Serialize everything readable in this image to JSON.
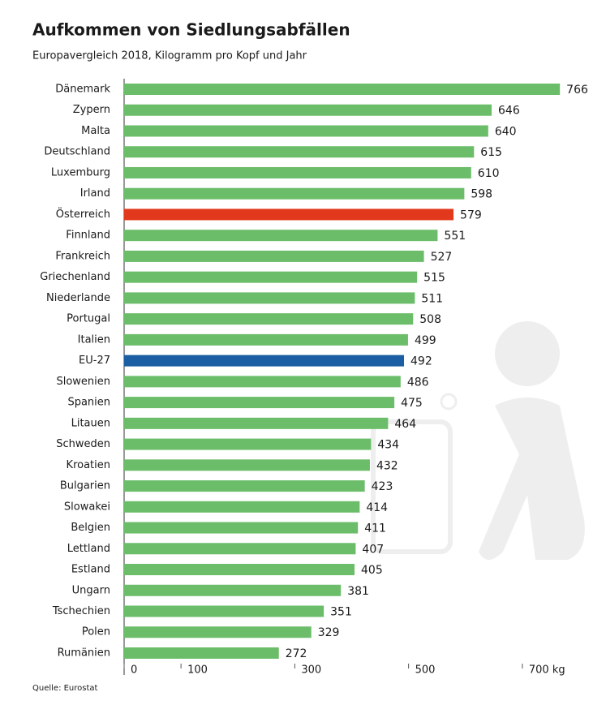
{
  "chart_data": {
    "type": "hbar",
    "title": "Aufkommen von Siedlungsabfällen",
    "subtitle": "Europavergleich 2018, Kilogramm pro Kopf und Jahr",
    "source": "Quelle: Eurostat",
    "categories": [
      "Dänemark",
      "Zypern",
      "Malta",
      "Deutschland",
      "Luxemburg",
      "Irland",
      "Österreich",
      "Finnland",
      "Frankreich",
      "Griechenland",
      "Niederlande",
      "Portugal",
      "Italien",
      "EU-27",
      "Slowenien",
      "Spanien",
      "Litauen",
      "Schweden",
      "Kroatien",
      "Bulgarien",
      "Slowakei",
      "Belgien",
      "Lettland",
      "Estland",
      "Ungarn",
      "Tschechien",
      "Polen",
      "Rumänien"
    ],
    "values": [
      766,
      646,
      640,
      615,
      610,
      598,
      579,
      551,
      527,
      515,
      511,
      508,
      499,
      492,
      486,
      475,
      464,
      434,
      432,
      423,
      414,
      411,
      407,
      405,
      381,
      351,
      329,
      272
    ],
    "colors": [
      "#6cbd6a",
      "#6cbd6a",
      "#6cbd6a",
      "#6cbd6a",
      "#6cbd6a",
      "#6cbd6a",
      "#e2391d",
      "#6cbd6a",
      "#6cbd6a",
      "#6cbd6a",
      "#6cbd6a",
      "#6cbd6a",
      "#6cbd6a",
      "#1c5ea3",
      "#6cbd6a",
      "#6cbd6a",
      "#6cbd6a",
      "#6cbd6a",
      "#6cbd6a",
      "#6cbd6a",
      "#6cbd6a",
      "#6cbd6a",
      "#6cbd6a",
      "#6cbd6a",
      "#6cbd6a",
      "#6cbd6a",
      "#6cbd6a",
      "#6cbd6a"
    ],
    "xlim": [
      0,
      780
    ],
    "xticks": [
      0,
      100,
      300,
      500,
      {
        "value": 700,
        "label": "700 kg"
      }
    ]
  }
}
